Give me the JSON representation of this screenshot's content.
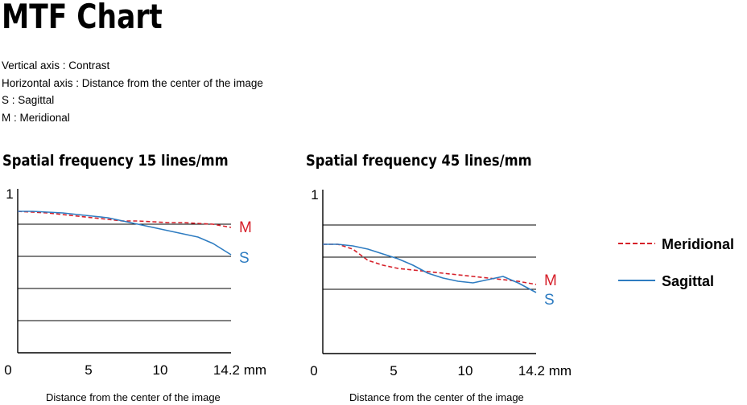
{
  "page": {
    "title": "MTF Chart",
    "notes": [
      "Vertical axis : Contrast",
      "Horizontal axis : Distance from the center of the image",
      "S : Sagittal",
      "M : Meridional"
    ]
  },
  "legend": {
    "meridional": "Meridional",
    "sagittal": "Sagittal"
  },
  "colors": {
    "meridional": "#d6202a",
    "sagittal": "#2e7cc1",
    "grid": "#000000"
  },
  "chart_data": [
    {
      "type": "line",
      "title": "Spatial frequency 15 lines/mm",
      "xlabel": "Distance from the center of the image",
      "ylabel": "",
      "xlim": [
        0,
        14.2
      ],
      "ylim": [
        0,
        1
      ],
      "x_ticks": [
        "0",
        "5",
        "10",
        "14.2 mm"
      ],
      "y_ticks": [
        "1"
      ],
      "grid_y": [
        0.2,
        0.4,
        0.6,
        0.8
      ],
      "series": [
        {
          "name": "M",
          "style": "dashed",
          "color": "#d6202a",
          "x": [
            0,
            1,
            2,
            3,
            4,
            5,
            6,
            7,
            8,
            9,
            10,
            11,
            12,
            13,
            14.2
          ],
          "y": [
            0.88,
            0.875,
            0.87,
            0.86,
            0.85,
            0.84,
            0.83,
            0.82,
            0.82,
            0.815,
            0.81,
            0.81,
            0.805,
            0.8,
            0.78
          ]
        },
        {
          "name": "S",
          "style": "solid",
          "color": "#2e7cc1",
          "x": [
            0,
            1,
            2,
            3,
            4,
            5,
            6,
            7,
            8,
            9,
            10,
            11,
            12,
            13,
            14.2
          ],
          "y": [
            0.88,
            0.88,
            0.875,
            0.87,
            0.86,
            0.85,
            0.84,
            0.82,
            0.8,
            0.78,
            0.76,
            0.74,
            0.72,
            0.68,
            0.61
          ]
        }
      ]
    },
    {
      "type": "line",
      "title": "Spatial frequency 45 lines/mm",
      "xlabel": "Distance from the center of the image",
      "ylabel": "",
      "xlim": [
        0,
        14.2
      ],
      "ylim": [
        0,
        1
      ],
      "x_ticks": [
        "0",
        "5",
        "10",
        "14.2 mm"
      ],
      "y_ticks": [
        "1"
      ],
      "grid_y": [
        0.4,
        0.6,
        0.8
      ],
      "series": [
        {
          "name": "M",
          "style": "dashed",
          "color": "#d6202a",
          "x": [
            0,
            1,
            2,
            3,
            4,
            5,
            6,
            7,
            8,
            9,
            10,
            11,
            12,
            13,
            14.2
          ],
          "y": [
            0.68,
            0.68,
            0.65,
            0.58,
            0.55,
            0.53,
            0.52,
            0.51,
            0.5,
            0.49,
            0.48,
            0.47,
            0.46,
            0.45,
            0.43
          ]
        },
        {
          "name": "S",
          "style": "solid",
          "color": "#2e7cc1",
          "x": [
            0,
            1,
            2,
            3,
            4,
            5,
            6,
            7,
            8,
            9,
            10,
            11,
            12,
            13,
            14.2
          ],
          "y": [
            0.68,
            0.68,
            0.67,
            0.65,
            0.62,
            0.59,
            0.55,
            0.5,
            0.47,
            0.45,
            0.44,
            0.46,
            0.48,
            0.44,
            0.38
          ]
        }
      ]
    }
  ]
}
